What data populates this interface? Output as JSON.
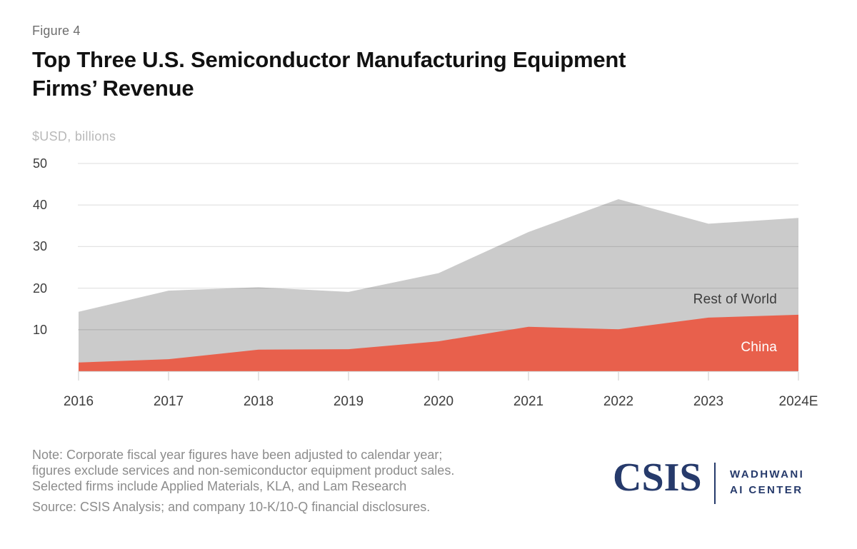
{
  "figure_label": "Figure 4",
  "title_line1": "Top Three U.S. Semiconductor Manufacturing Equipment",
  "title_line2": "Firms’ Revenue",
  "unit_label": "$USD, billions",
  "chart_data": {
    "type": "area",
    "stacked": true,
    "title": "Top Three U.S. Semiconductor Manufacturing Equipment Firms’ Revenue",
    "ylabel": "$USD, billions",
    "xlabel": "",
    "ylim": [
      0,
      50
    ],
    "yticks": [
      10,
      20,
      30,
      40,
      50
    ],
    "grid": true,
    "legend_position": "inline-area-labels",
    "categories": [
      "2016",
      "2017",
      "2018",
      "2019",
      "2020",
      "2021",
      "2022",
      "2023",
      "2024E"
    ],
    "series": [
      {
        "name": "China",
        "color": "#e8604c",
        "values": [
          2.1,
          2.9,
          5.2,
          5.3,
          7.2,
          10.7,
          10.1,
          12.9,
          13.6
        ]
      },
      {
        "name": "Rest of World",
        "color": "#cbcbcb",
        "values": [
          12.2,
          16.5,
          15.0,
          13.8,
          16.4,
          22.8,
          31.3,
          22.6,
          23.3
        ]
      }
    ],
    "stacked_totals": [
      14.3,
      19.4,
      20.2,
      19.1,
      23.6,
      33.5,
      41.4,
      35.5,
      36.9
    ]
  },
  "area_labels": {
    "rest_of_world": "Rest of World",
    "china": "China"
  },
  "note_lines": [
    "Note: Corporate fiscal year figures have been adjusted to calendar year;",
    "figures exclude services and non-semiconductor equipment product sales.",
    "Selected firms include Applied Materials, KLA, and Lam Research"
  ],
  "source_line": "Source: CSIS Analysis; and company 10-K/10-Q financial disclosures.",
  "logo": {
    "csis": "CSIS",
    "brand_line1": "WADHWANI",
    "brand_line2": "AI CENTER",
    "color": "#263a6b"
  },
  "colors": {
    "china_area": "#e8604c",
    "rest_of_world_area": "#cbcbcb",
    "gridline": "#dedede",
    "axis_text": "#3d3d3d",
    "title_text": "#111111",
    "muted_text": "#8c8c8c",
    "logo_navy": "#263a6b"
  }
}
